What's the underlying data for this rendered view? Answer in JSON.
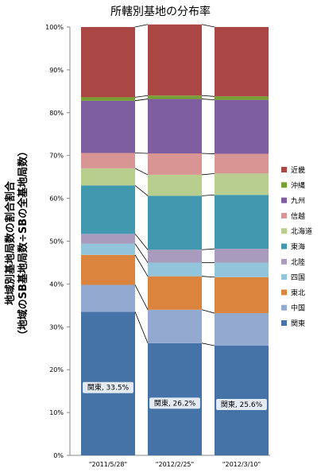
{
  "chart_data": {
    "type": "stacked-bar-100",
    "title": "所轄別基地の分布率",
    "ylabel_lines": [
      "地域別基地局数の割合割合",
      "（地域のSB基地局数÷SBの全基地局数）"
    ],
    "categories": [
      "\"2011/5/28\"",
      "\"2012/2/25\"",
      "\"2012/3/10\""
    ],
    "ylim": [
      0,
      100
    ],
    "yticks": [
      "0%",
      "10%",
      "20%",
      "30%",
      "40%",
      "50%",
      "60%",
      "70%",
      "80%",
      "90%",
      "100%"
    ],
    "series": [
      {
        "name": "関東",
        "color": "#4572A7",
        "values": [
          33.5,
          26.2,
          25.6
        ]
      },
      {
        "name": "中国",
        "color": "#93A9CF",
        "values": [
          6.3,
          7.8,
          7.6
        ]
      },
      {
        "name": "東北",
        "color": "#DB843D",
        "values": [
          7.0,
          7.8,
          8.4
        ]
      },
      {
        "name": "四国",
        "color": "#92C5DC",
        "values": [
          2.6,
          3.2,
          3.4
        ]
      },
      {
        "name": "北陸",
        "color": "#A99BBD",
        "values": [
          2.3,
          3.0,
          3.2
        ]
      },
      {
        "name": "東海",
        "color": "#4198AF",
        "values": [
          11.3,
          12.6,
          12.6
        ]
      },
      {
        "name": "北海道",
        "color": "#B8CE8E",
        "values": [
          4.0,
          4.9,
          5.0
        ]
      },
      {
        "name": "信越",
        "color": "#D99594",
        "values": [
          3.6,
          5.0,
          4.6
        ]
      },
      {
        "name": "九州",
        "color": "#7E5E9F",
        "values": [
          12.2,
          12.7,
          12.6
        ]
      },
      {
        "name": "沖縄",
        "color": "#77A033",
        "values": [
          0.8,
          0.8,
          0.8
        ]
      },
      {
        "name": "近畿",
        "color": "#AA4643",
        "values": [
          16.4,
          16.6,
          16.2
        ]
      }
    ],
    "data_labels": [
      "関東, 33.5%",
      "関東, 26.2%",
      "関東, 25.6%"
    ],
    "legend_order": [
      "近畿",
      "沖縄",
      "九州",
      "信越",
      "北海道",
      "東海",
      "北陸",
      "四国",
      "東北",
      "中国",
      "関東"
    ],
    "legend_position": "right",
    "series_lines": true
  }
}
